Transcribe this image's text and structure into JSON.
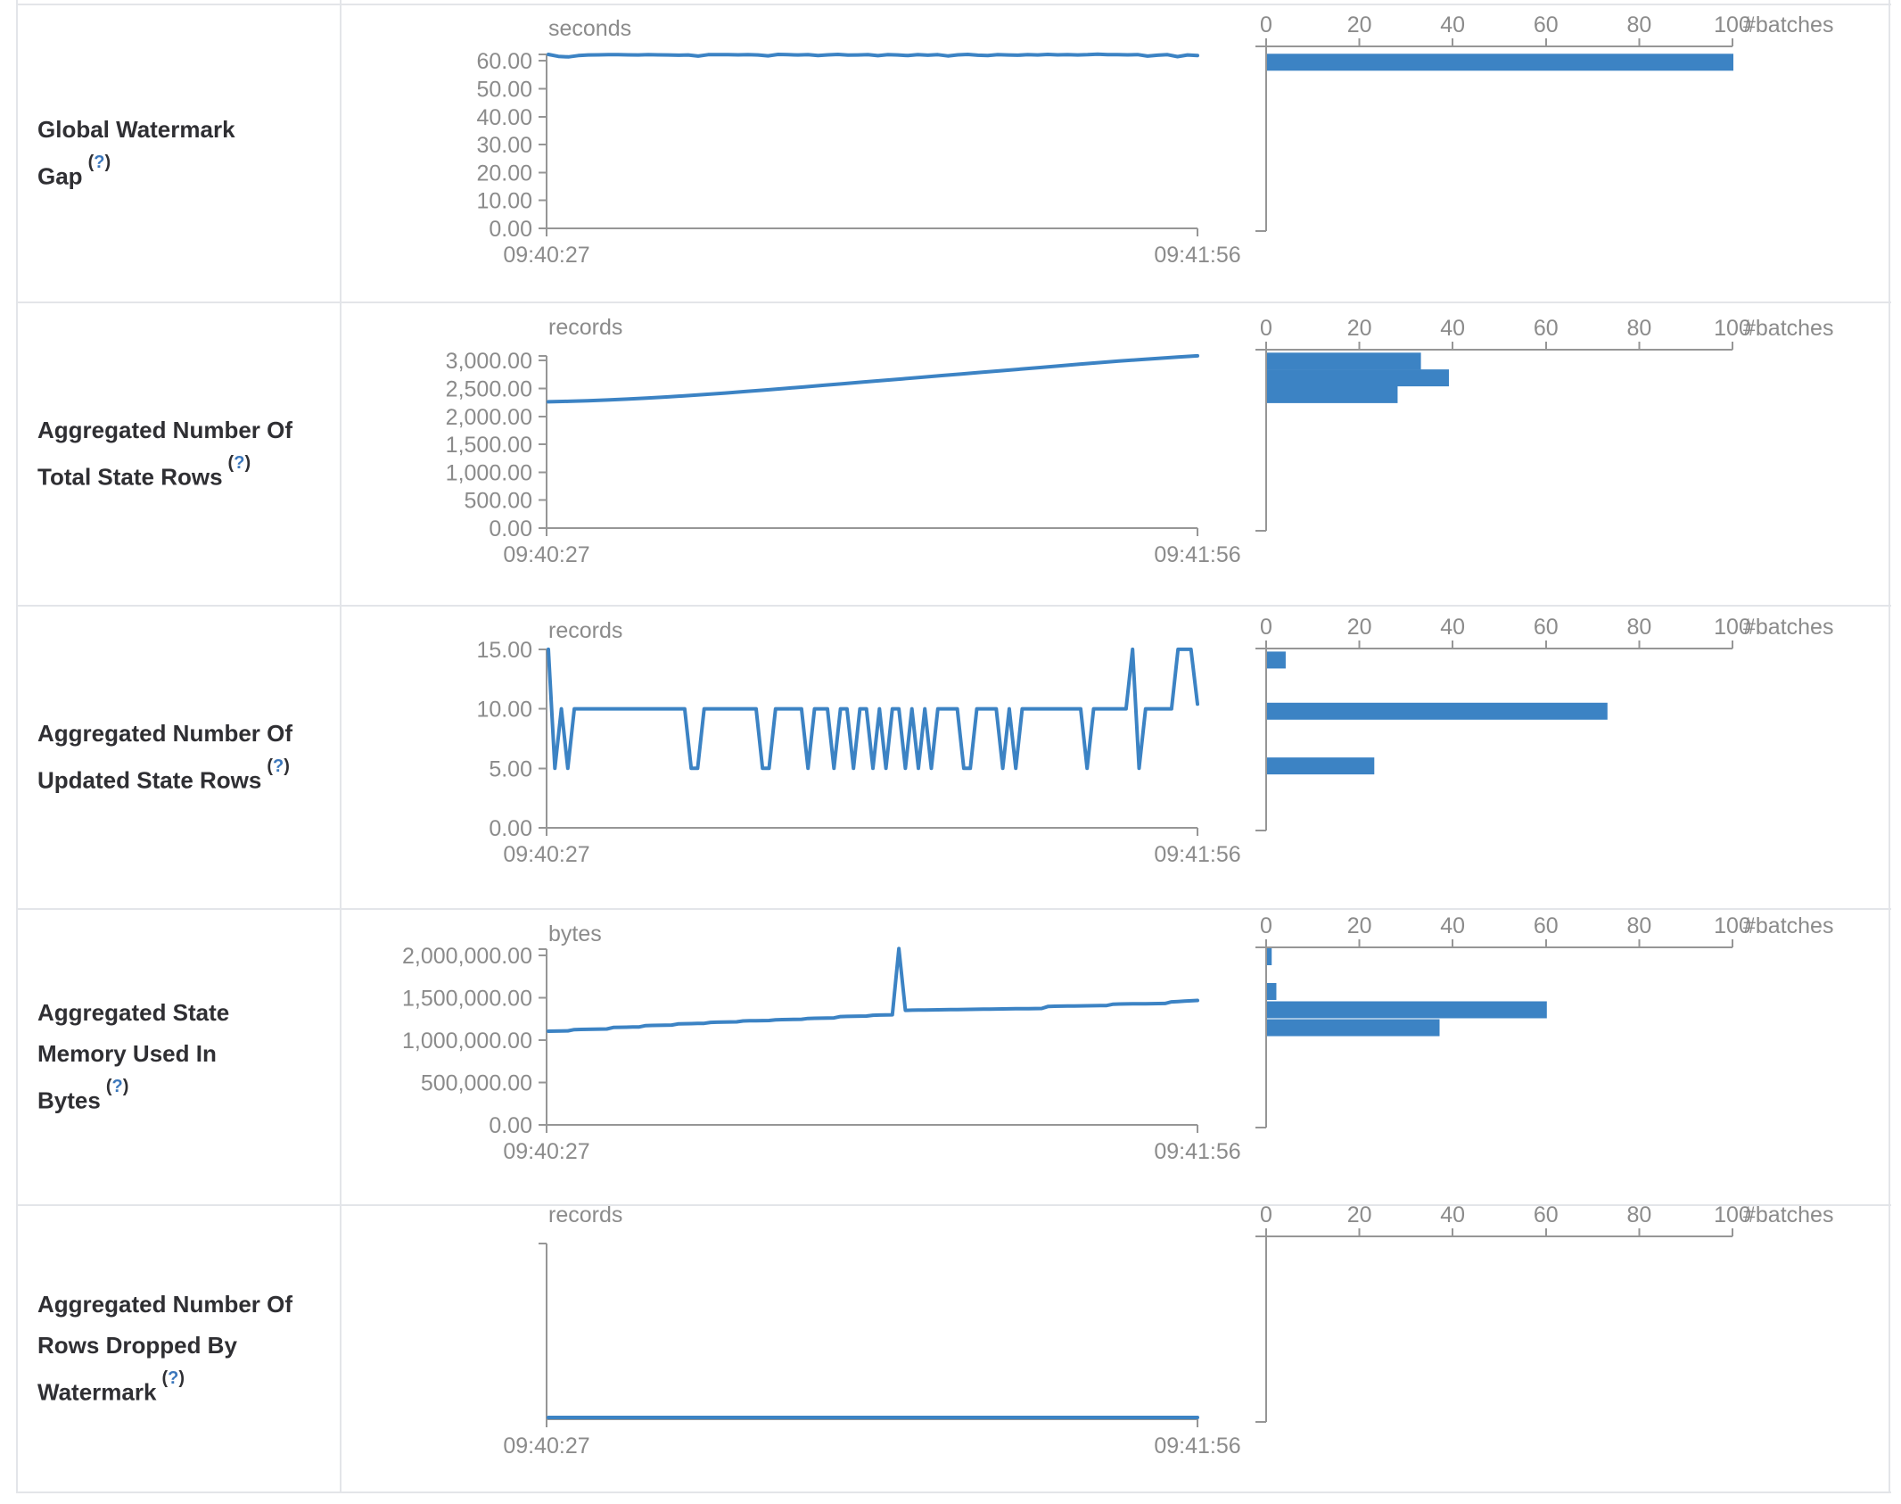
{
  "page": {
    "time_axis": {
      "start_label": "09:40:27",
      "end_label": "09:41:56"
    },
    "batches_axis": {
      "label": "#batches",
      "tick_labels": [
        "0",
        "20",
        "40",
        "60",
        "80",
        "100"
      ],
      "tick_values": [
        0,
        20,
        40,
        60,
        80,
        100
      ]
    }
  },
  "colors": {
    "accent_blue": "#3c83c4",
    "axis_line_gray": "#969696",
    "axis_text_gray": "#8b8b8b",
    "label_dark": "#2f2f33",
    "help_blue": "#3a76bb",
    "border_gray": "#e3e5e9"
  },
  "chart_data": [
    {
      "title": "Global Watermark Gap",
      "help": {
        "open": "(",
        "q": "?",
        "close": ")"
      },
      "timeline": {
        "type": "line",
        "unit": "seconds",
        "x_start": "09:40:27",
        "x_end": "09:41:56",
        "tick_labels": [
          "60.00",
          "50.00",
          "40.00",
          "30.00",
          "20.00",
          "10.00",
          "0.00"
        ],
        "tick_values": [
          60,
          50,
          40,
          30,
          20,
          10,
          0
        ],
        "ylim": [
          0,
          62.5
        ],
        "values": [
          62.3,
          61.6,
          61.4,
          61.9,
          62.1,
          62.15,
          62.2,
          62.2,
          62.15,
          62.1,
          62.2,
          62.15,
          62.1,
          62.0,
          62.1,
          61.7,
          62.2,
          62.25,
          62.2,
          62.15,
          62.2,
          62.1,
          61.8,
          62.3,
          62.2,
          62.1,
          62.25,
          61.9,
          62.15,
          62.3,
          62.05,
          62.1,
          62.25,
          61.85,
          62.2,
          62.1,
          61.9,
          62.25,
          62.0,
          62.2,
          61.75,
          62.15,
          62.3,
          62.0,
          61.9,
          62.25,
          62.1,
          62.0,
          62.2,
          62.1,
          62.3,
          62.15,
          62.25,
          62.1,
          62.2,
          62.4,
          62.25,
          62.2,
          62.15,
          62.25,
          61.7,
          62.0,
          62.2,
          61.5,
          62.1,
          61.9
        ]
      },
      "histogram": {
        "type": "bar",
        "xlabel": "#batches",
        "xticks": [
          0,
          20,
          40,
          60,
          80,
          100
        ],
        "bars": [
          {
            "count": 100,
            "at_value": 59.5
          }
        ]
      }
    },
    {
      "title": "Aggregated Number Of Total State Rows",
      "help": {
        "open": "(",
        "q": "?",
        "close": ")"
      },
      "timeline": {
        "type": "line",
        "unit": "records",
        "x_start": "09:40:27",
        "x_end": "09:41:56",
        "tick_labels": [
          "3,000.00",
          "2,500.00",
          "2,000.00",
          "1,500.00",
          "1,000.00",
          "500.00",
          "0.00"
        ],
        "tick_values": [
          3000,
          2500,
          2000,
          1500,
          1000,
          500,
          0
        ],
        "ylim": [
          0,
          3085
        ],
        "values": [
          2262,
          2270,
          2281,
          2294,
          2310,
          2328,
          2348,
          2370,
          2394,
          2419,
          2445,
          2472,
          2500,
          2528,
          2557,
          2586,
          2615,
          2644,
          2673,
          2702,
          2731,
          2760,
          2789,
          2818,
          2847,
          2876,
          2905,
          2934,
          2963,
          2992,
          3015,
          3040,
          3062,
          3085
        ]
      },
      "histogram": {
        "type": "bar",
        "xlabel": "#batches",
        "xticks": [
          0,
          20,
          40,
          60,
          80,
          100
        ],
        "bars": [
          {
            "count": 33,
            "at_value": 2990
          },
          {
            "count": 39,
            "at_value": 2690
          },
          {
            "count": 28,
            "at_value": 2390
          }
        ]
      }
    },
    {
      "title": "Aggregated Number Of Updated State Rows",
      "help": {
        "open": "(",
        "q": "?",
        "close": ")"
      },
      "timeline": {
        "type": "line",
        "unit": "records",
        "x_start": "09:40:27",
        "x_end": "09:41:56",
        "tick_labels": [
          "15.00",
          "10.00",
          "5.00",
          "0.00"
        ],
        "tick_values": [
          15,
          10,
          5,
          0
        ],
        "ylim": [
          0,
          15
        ],
        "values": [
          15,
          5,
          10,
          5,
          10,
          10,
          10,
          10,
          10,
          10,
          10,
          10,
          10,
          10,
          10,
          10,
          10,
          10,
          10,
          10,
          10,
          10,
          5,
          5,
          10,
          10,
          10,
          10,
          10,
          10,
          10,
          10,
          10,
          5,
          5,
          10,
          10,
          10,
          10,
          10,
          5,
          10,
          10,
          10,
          5,
          10,
          10,
          5,
          10,
          10,
          5,
          10,
          5,
          10,
          10,
          5,
          10,
          5,
          10,
          5,
          10,
          10,
          10,
          10,
          5,
          5,
          10,
          10,
          10,
          10,
          5,
          10,
          5,
          10,
          10,
          10,
          10,
          10,
          10,
          10,
          10,
          10,
          10,
          5,
          10,
          10,
          10,
          10,
          10,
          10,
          15,
          5,
          10,
          10,
          10,
          10,
          10,
          15,
          15,
          15,
          10.4
        ]
      },
      "histogram": {
        "type": "bar",
        "xlabel": "#batches",
        "xticks": [
          0,
          20,
          40,
          60,
          80,
          100
        ],
        "bars": [
          {
            "count": 4,
            "at_value": 14.1
          },
          {
            "count": 73,
            "at_value": 9.8
          },
          {
            "count": 23,
            "at_value": 5.2
          }
        ]
      }
    },
    {
      "title": "Aggregated State Memory Used In Bytes",
      "help": {
        "open": "(",
        "q": "?",
        "close": ")"
      },
      "timeline": {
        "type": "line",
        "unit": "bytes",
        "x_start": "09:40:27",
        "x_end": "09:41:56",
        "tick_labels": [
          "2,000,000.00",
          "1,500,000.00",
          "1,000,000.00",
          "500,000.00",
          "0.00"
        ],
        "tick_values": [
          2000000,
          1500000,
          1000000,
          500000,
          0
        ],
        "ylim": [
          0,
          2080000
        ],
        "values": [
          1105000,
          1106000,
          1108000,
          1110000,
          1124000,
          1126000,
          1127000,
          1129000,
          1130000,
          1132000,
          1150000,
          1152000,
          1153000,
          1155000,
          1156000,
          1172000,
          1174000,
          1175000,
          1177000,
          1178000,
          1192000,
          1194000,
          1195000,
          1197000,
          1198000,
          1210000,
          1212000,
          1213000,
          1215000,
          1216000,
          1226000,
          1228000,
          1229000,
          1231000,
          1232000,
          1240000,
          1242000,
          1243000,
          1245000,
          1246000,
          1256000,
          1258000,
          1259000,
          1261000,
          1262000,
          1278000,
          1280000,
          1281000,
          1283000,
          1284000,
          1294000,
          1296000,
          1297000,
          1299000,
          2080000,
          1352000,
          1354000,
          1355000,
          1356000,
          1357000,
          1358000,
          1359000,
          1360000,
          1361000,
          1362000,
          1363000,
          1364000,
          1365000,
          1366000,
          1367000,
          1368000,
          1369000,
          1370000,
          1371000,
          1372000,
          1373000,
          1374000,
          1398000,
          1400000,
          1401000,
          1402000,
          1403000,
          1404000,
          1405000,
          1406000,
          1407000,
          1408000,
          1424000,
          1426000,
          1427000,
          1428000,
          1429000,
          1430000,
          1431000,
          1432000,
          1433000,
          1452000,
          1456000,
          1460000,
          1464000,
          1468000
        ]
      },
      "histogram": {
        "type": "bar",
        "xlabel": "#batches",
        "xticks": [
          0,
          20,
          40,
          60,
          80,
          100
        ],
        "bars": [
          {
            "count": 1,
            "at_value": 1984000
          },
          {
            "count": 2,
            "at_value": 1574000
          },
          {
            "count": 60,
            "at_value": 1358000
          },
          {
            "count": 37,
            "at_value": 1147000
          }
        ]
      }
    },
    {
      "title": "Aggregated Number Of Rows Dropped By Watermark",
      "help": {
        "open": "(",
        "q": "?",
        "close": ")"
      },
      "timeline": {
        "type": "line",
        "unit": "records",
        "x_start": "09:40:27",
        "x_end": "09:41:56",
        "tick_labels": [],
        "tick_values": [],
        "ylim": [
          0,
          0
        ],
        "values": [
          0,
          0
        ]
      },
      "histogram": {
        "type": "bar",
        "xlabel": "#batches",
        "xticks": [
          0,
          20,
          40,
          60,
          80,
          100
        ],
        "bars": []
      }
    }
  ]
}
